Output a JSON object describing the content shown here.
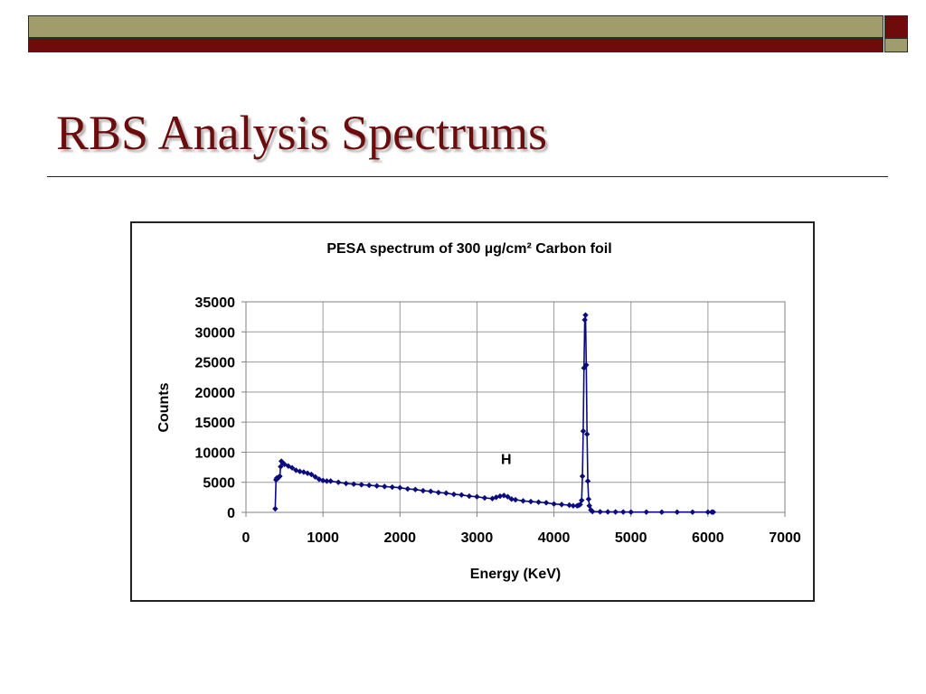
{
  "slide": {
    "title": "RBS Analysis Spectrums"
  },
  "colors": {
    "olive": "#a19c6b",
    "maroon": "#6e0c0c",
    "title": "#6b0d0d",
    "series": "#0b0b80"
  },
  "chart_data": {
    "type": "line",
    "title": "PESA spectrum of 300 µg/cm² Carbon foil",
    "xlabel": "Energy (KeV)",
    "ylabel": "Counts",
    "xlim": [
      0,
      7000
    ],
    "ylim": [
      0,
      35000
    ],
    "xticks": [
      0,
      1000,
      2000,
      3000,
      4000,
      5000,
      6000,
      7000
    ],
    "yticks": [
      0,
      5000,
      10000,
      15000,
      20000,
      25000,
      30000,
      35000
    ],
    "grid": true,
    "legend": "none",
    "annotations": [
      {
        "text": "H",
        "x": 3380,
        "y": 8000
      }
    ],
    "series": [
      {
        "marker": "diamond",
        "x": [
          380,
          390,
          400,
          410,
          420,
          430,
          440,
          450,
          460,
          480,
          500,
          550,
          600,
          650,
          700,
          750,
          800,
          850,
          900,
          950,
          1000,
          1050,
          1100,
          1200,
          1300,
          1400,
          1500,
          1600,
          1700,
          1800,
          1900,
          2000,
          2100,
          2200,
          2300,
          2400,
          2500,
          2600,
          2700,
          2800,
          2900,
          3000,
          3100,
          3200,
          3250,
          3300,
          3350,
          3400,
          3450,
          3500,
          3600,
          3700,
          3800,
          3900,
          4000,
          4100,
          4200,
          4250,
          4300,
          4320,
          4340,
          4360,
          4370,
          4380,
          4390,
          4400,
          4410,
          4420,
          4430,
          4440,
          4450,
          4460,
          4480,
          4500,
          4600,
          4700,
          4800,
          4900,
          5000,
          5200,
          5400,
          5600,
          5800,
          6000,
          6050,
          6070
        ],
        "y": [
          600,
          5400,
          5700,
          5600,
          5800,
          5900,
          6000,
          7600,
          8500,
          8200,
          8000,
          7700,
          7400,
          7000,
          6800,
          6700,
          6500,
          6300,
          5900,
          5500,
          5300,
          5200,
          5200,
          5000,
          4800,
          4700,
          4600,
          4500,
          4400,
          4300,
          4200,
          4100,
          3900,
          3800,
          3600,
          3500,
          3300,
          3200,
          3000,
          2900,
          2700,
          2600,
          2400,
          2300,
          2500,
          2700,
          2800,
          2600,
          2200,
          2100,
          1900,
          1800,
          1700,
          1600,
          1400,
          1300,
          1200,
          1100,
          1100,
          1150,
          1300,
          2000,
          6000,
          13500,
          24000,
          32000,
          32800,
          24500,
          13000,
          5200,
          2200,
          1100,
          400,
          150,
          100,
          80,
          70,
          60,
          50,
          50,
          40,
          40,
          40,
          40,
          40,
          40
        ]
      }
    ]
  }
}
